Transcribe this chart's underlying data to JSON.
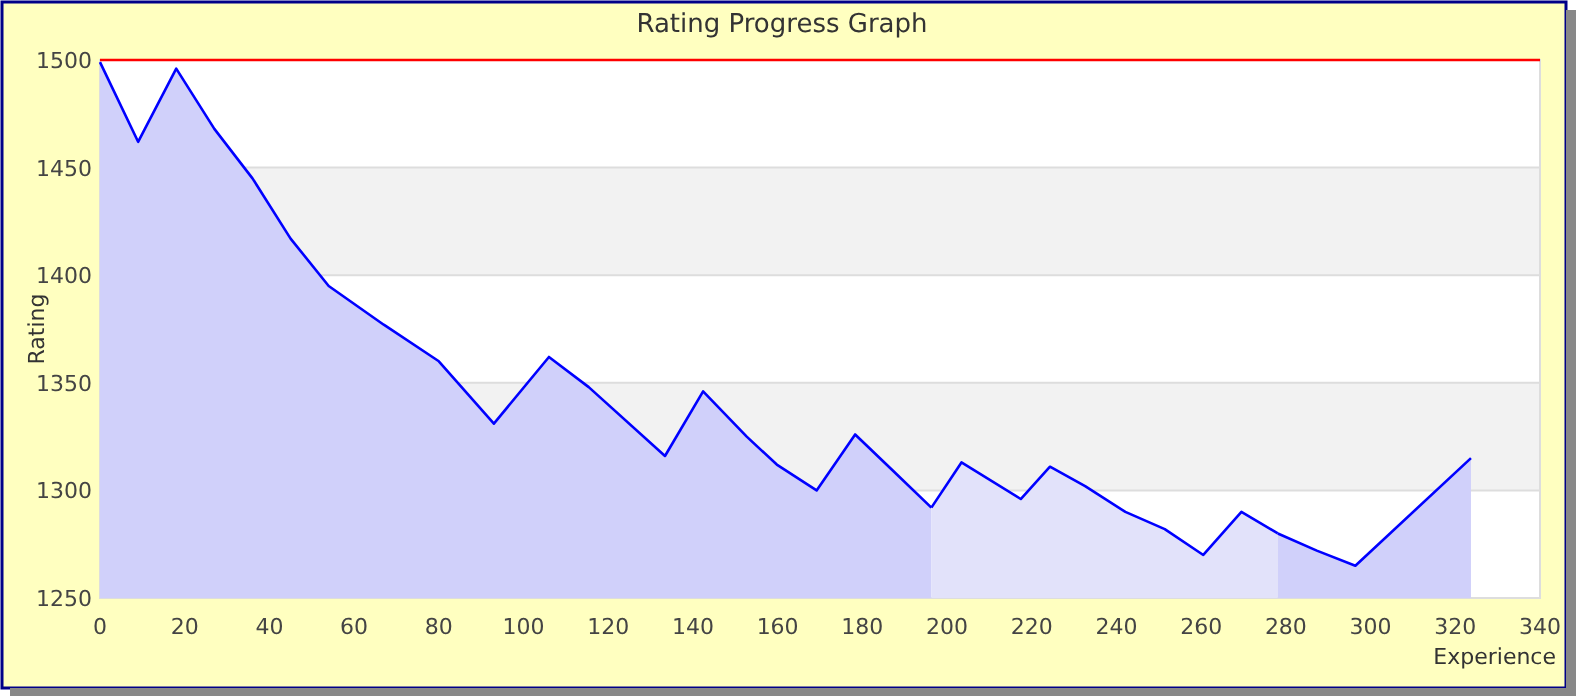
{
  "chart_data": {
    "type": "area",
    "title": "Rating Progress Graph",
    "xlabel": "Experience",
    "ylabel": "Rating",
    "xlim": [
      0,
      340
    ],
    "xticks": [
      0,
      20,
      40,
      60,
      80,
      100,
      120,
      140,
      160,
      180,
      200,
      220,
      240,
      260,
      280,
      300,
      320,
      340
    ],
    "ylim": [
      1250,
      1500
    ],
    "yticks": [
      1250,
      1300,
      1350,
      1400,
      1450,
      1500
    ],
    "grid": "y",
    "ref_lines": [
      {
        "axis": "y",
        "value": 1500,
        "color": "#ff0000"
      }
    ],
    "series": [
      {
        "color": "#d0d0fa",
        "x": [
          0,
          9,
          18,
          27,
          36,
          45,
          54,
          67,
          80,
          93,
          106,
          115.4,
          133.4,
          142.4,
          152.7,
          159.8,
          169.2,
          178.3,
          187.3,
          196.3
        ],
        "values": [
          1499,
          1462,
          1496,
          1468,
          1445,
          1417,
          1395,
          1377,
          1360,
          1331,
          1362,
          1348,
          1316,
          1346,
          1325,
          1312,
          1300,
          1326,
          1309,
          1292
        ]
      },
      {
        "color": "#e2e2fa",
        "x": [
          196.3,
          203.4,
          217.4,
          224.3,
          232.6,
          242.1,
          251.4,
          260.5,
          269.5,
          278.1
        ],
        "values": [
          1292,
          1313,
          1296,
          1311,
          1302,
          1290,
          1282,
          1270,
          1290,
          1280
        ]
      },
      {
        "color": "#d0d0fa",
        "x": [
          278.1,
          287.3,
          296.4,
          323.7
        ],
        "values": [
          1280,
          1272,
          1265,
          1315
        ]
      }
    ]
  }
}
